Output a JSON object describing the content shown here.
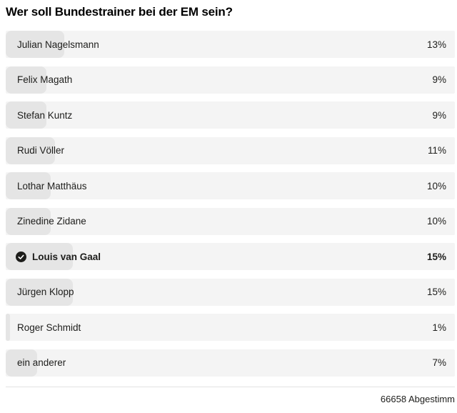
{
  "poll": {
    "title": "Wer soll Bundestrainer bei der EM sein?",
    "options": [
      {
        "label": "Julian Nagelsmann",
        "percent": 13,
        "percent_label": "13%",
        "voted": false
      },
      {
        "label": "Felix Magath",
        "percent": 9,
        "percent_label": "9%",
        "voted": false
      },
      {
        "label": "Stefan Kuntz",
        "percent": 9,
        "percent_label": "9%",
        "voted": false
      },
      {
        "label": "Rudi Völler",
        "percent": 11,
        "percent_label": "11%",
        "voted": false
      },
      {
        "label": "Lothar Matthäus",
        "percent": 10,
        "percent_label": "10%",
        "voted": false
      },
      {
        "label": "Zinedine Zidane",
        "percent": 10,
        "percent_label": "10%",
        "voted": false
      },
      {
        "label": "Louis van Gaal",
        "percent": 15,
        "percent_label": "15%",
        "voted": true
      },
      {
        "label": "Jürgen Klopp",
        "percent": 15,
        "percent_label": "15%",
        "voted": false
      },
      {
        "label": "Roger Schmidt",
        "percent": 1,
        "percent_label": "1%",
        "voted": false
      },
      {
        "label": "ein anderer",
        "percent": 7,
        "percent_label": "7%",
        "voted": false
      }
    ],
    "footer": {
      "total_label": "66658 Abgestimm"
    },
    "icons": {
      "voted_check": "check-circle-icon"
    }
  },
  "colors": {
    "page_bg": "#ffffff",
    "row_bg": "#f4f4f4",
    "bar_fill": "#e5e5e5",
    "text": "#1d1d1b",
    "check_bg": "#1d1d1b",
    "check_mark": "#ffffff",
    "divider": "#e2e2e2"
  },
  "chart_data": {
    "type": "bar",
    "orientation": "horizontal",
    "title": "Wer soll Bundestrainer bei der EM sein?",
    "categories": [
      "Julian Nagelsmann",
      "Felix Magath",
      "Stefan Kuntz",
      "Rudi Völler",
      "Lothar Matthäus",
      "Zinedine Zidane",
      "Louis van Gaal",
      "Jürgen Klopp",
      "Roger Schmidt",
      "ein anderer"
    ],
    "values": [
      13,
      9,
      9,
      11,
      10,
      10,
      15,
      15,
      1,
      7
    ],
    "unit": "%",
    "annotations": [
      "Louis van Gaal is the voted option (checkmark)"
    ],
    "footer_label": "66658 Abgestimm"
  }
}
